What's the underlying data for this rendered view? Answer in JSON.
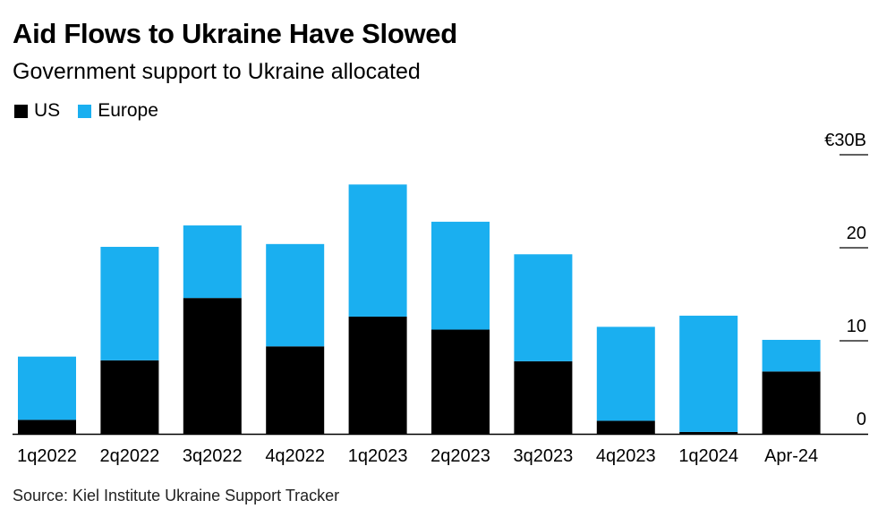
{
  "title": "Aid Flows to Ukraine Have Slowed",
  "subtitle": "Government support to Ukraine allocated",
  "source": "Source: Kiel Institute Ukraine Support Tracker",
  "colors": {
    "us": "#000000",
    "europe": "#1aaff0"
  },
  "chart_data": {
    "type": "bar",
    "stacked": true,
    "title": "Aid Flows to Ukraine Have Slowed",
    "subtitle": "Government support to Ukraine allocated",
    "categories": [
      "1q2022",
      "2q2022",
      "3q2022",
      "4q2022",
      "1q2023",
      "2q2023",
      "3q2023",
      "4q2023",
      "1q2024",
      "Apr-24"
    ],
    "series": [
      {
        "name": "US",
        "color": "#000000",
        "values": [
          1.5,
          7.9,
          14.6,
          9.4,
          12.6,
          11.2,
          7.8,
          1.4,
          0.2,
          6.7
        ]
      },
      {
        "name": "Europe",
        "color": "#1aaff0",
        "values": [
          6.8,
          12.2,
          7.8,
          11.0,
          14.2,
          11.6,
          11.5,
          10.1,
          12.5,
          3.4
        ]
      }
    ],
    "ylim": [
      0,
      30
    ],
    "yticks": [
      0,
      10,
      20,
      30
    ],
    "ytick_labels": [
      "0",
      "10",
      "20",
      "€30B"
    ],
    "legend": "top-left",
    "grid": false
  }
}
